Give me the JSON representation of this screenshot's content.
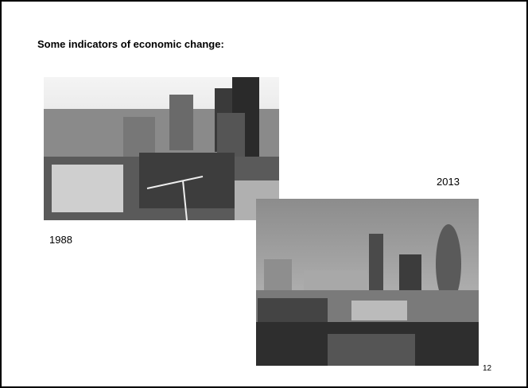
{
  "slide": {
    "title": "Some indicators of economic change:",
    "labels": {
      "later": "2013",
      "earlier": "1988"
    },
    "page_number": "12"
  }
}
